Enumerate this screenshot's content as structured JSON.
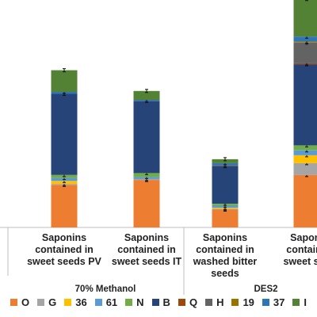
{
  "chart_data": {
    "type": "bar",
    "stacked": true,
    "categories": [
      [
        "Saponins",
        "contained in",
        "sweet seeds PV"
      ],
      [
        "Saponins",
        "contained in",
        "sweet seeds IT"
      ],
      [
        "Saponins",
        "contained in",
        "washed bitter",
        "seeds"
      ],
      [
        "Saponi",
        "containe",
        "sweet see"
      ]
    ],
    "groups": [
      {
        "label": "70% Methanol",
        "categories": [
          0,
          1
        ]
      },
      {
        "label": "DES2",
        "categories": [
          2,
          3
        ]
      }
    ],
    "series": [
      {
        "name": "O",
        "color": "#ED7D31",
        "values": [
          43,
          48,
          18,
          53
        ]
      },
      {
        "name": "G",
        "color": "#A5A5A5",
        "values": [
          1,
          1,
          1,
          12
        ]
      },
      {
        "name": "36",
        "color": "#FFC000",
        "values": [
          3,
          0,
          1,
          8
        ]
      },
      {
        "name": "61",
        "color": "#5B9BD5",
        "values": [
          3,
          2,
          2,
          5
        ]
      },
      {
        "name": "N",
        "color": "#70AD47",
        "values": [
          3,
          4,
          2,
          5
        ]
      },
      {
        "name": "B",
        "color": "#264478",
        "values": [
          82,
          73,
          38,
          82
        ]
      },
      {
        "name": "Q",
        "color": "#9E480E",
        "values": [
          0,
          0,
          0,
          1
        ]
      },
      {
        "name": "H",
        "color": "#636363",
        "values": [
          0,
          0,
          1,
          21
        ]
      },
      {
        "name": "19",
        "color": "#997300",
        "values": [
          0,
          0,
          0,
          1
        ]
      },
      {
        "name": "37",
        "color": "#2E75B6",
        "values": [
          2,
          1,
          2,
          5
        ]
      },
      {
        "name": "I",
        "color": "#548235",
        "values": [
          22,
          9,
          4,
          38
        ]
      }
    ],
    "error_bars": true,
    "legend_position": "bottom",
    "grid": false,
    "ylim": [
      0,
      230
    ]
  }
}
